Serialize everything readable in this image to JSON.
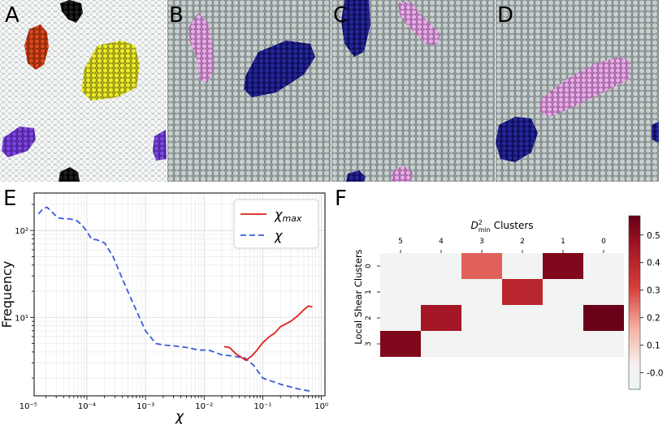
{
  "panel_labels": {
    "A": "A",
    "B": "B",
    "C": "C",
    "D": "D",
    "E": "E",
    "F": "F"
  },
  "colors": {
    "particle_light": "#f4f6f6",
    "particle_gray": "#c7cece",
    "outline": "#8a9292",
    "orange": "#d9481b",
    "black": "#111111",
    "yellow": "#eaea2a",
    "purple": "#7d45e0",
    "navy": "#1f1f8f",
    "pink": "#e6a3e6",
    "red_line": "#e0201b",
    "blue_dash": "#3a5ad9"
  },
  "chart_data": [
    {
      "type": "line",
      "panel": "E",
      "xscale": "log",
      "yscale": "log",
      "xlim": [
        1.26e-05,
        1.15
      ],
      "ylim": [
        1.25,
        270
      ],
      "xlabel": "χ",
      "ylabel": "Frequency",
      "xticks": [
        "10⁻⁵",
        "10⁻⁴",
        "10⁻³",
        "10⁻²",
        "10⁻¹",
        "10⁰"
      ],
      "yticks": [
        "10¹",
        "10²"
      ],
      "legend_placement": "top-right",
      "grid": true,
      "series": [
        {
          "name": "χ_max",
          "legend_label": "χ",
          "legend_sub": "max",
          "style": "solid",
          "color": "#e0201b",
          "x": [
            0.022,
            0.027,
            0.035,
            0.045,
            0.052,
            0.065,
            0.08,
            0.1,
            0.13,
            0.16,
            0.2,
            0.3,
            0.4,
            0.5,
            0.6,
            0.7
          ],
          "y": [
            4.6,
            4.5,
            3.8,
            3.4,
            3.2,
            3.6,
            4.2,
            5.1,
            6.0,
            6.6,
            7.8,
            9.0,
            10.5,
            12.2,
            13.5,
            13.2
          ]
        },
        {
          "name": "χ",
          "legend_label": "χ",
          "legend_sub": "",
          "style": "dashed",
          "color": "#3a5ad9",
          "x": [
            1.5e-05,
            1.8e-05,
            2.1e-05,
            2.5e-05,
            3.2e-05,
            4e-05,
            5e-05,
            6.5e-05,
            8e-05,
            0.0001,
            0.00012,
            0.00015,
            0.0002,
            0.00028,
            0.0004,
            0.0006,
            0.001,
            0.0015,
            0.002,
            0.003,
            0.005,
            0.008,
            0.012,
            0.02,
            0.03,
            0.05,
            0.07,
            0.1,
            0.2,
            0.4,
            0.7
          ],
          "y": [
            155,
            180,
            185,
            165,
            140,
            137,
            136,
            132,
            118,
            98,
            80,
            78,
            72,
            50,
            28,
            15,
            7,
            5,
            4.8,
            4.7,
            4.5,
            4.2,
            4.2,
            3.7,
            3.6,
            3.4,
            2.8,
            2.0,
            1.7,
            1.5,
            1.4
          ]
        }
      ]
    },
    {
      "type": "heatmap",
      "panel": "F",
      "title": "D",
      "title_sup": "2",
      "title_sub": "min",
      "title_rest": " Clusters",
      "ylabel": "Local Shear Clusters",
      "columns": [
        "5",
        "4",
        "3",
        "2",
        "1",
        "0"
      ],
      "rows": [
        "0",
        "1",
        "2",
        "3"
      ],
      "values": [
        [
          0.0,
          0.0,
          0.27,
          0.0,
          0.53,
          0.0
        ],
        [
          0.0,
          0.0,
          0.0,
          0.4,
          0.0,
          0.0
        ],
        [
          0.0,
          0.46,
          0.0,
          0.0,
          0.0,
          0.57
        ],
        [
          0.53,
          0.0,
          0.0,
          0.0,
          0.0,
          0.0
        ]
      ],
      "colorbar": {
        "min": -0.06,
        "max": 0.57,
        "ticks": [
          "-0.0",
          "0.1",
          "0.2",
          "0.3",
          "0.4",
          "0.5"
        ]
      }
    }
  ]
}
